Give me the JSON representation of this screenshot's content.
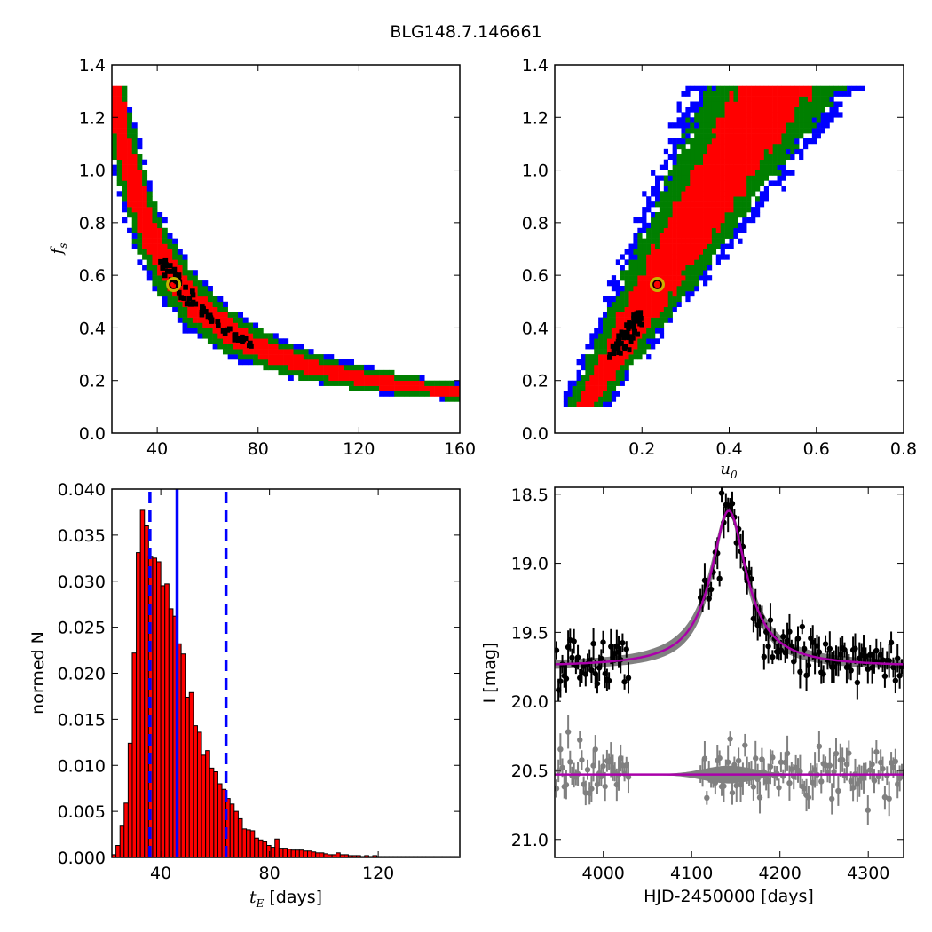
{
  "figure": {
    "title": "BLG148.7.146661"
  },
  "colors": {
    "red": "#ff0000",
    "green": "#007f00",
    "blue": "#0000ff",
    "black": "#000000",
    "gray": "#808080",
    "magenta": "#aa00aa",
    "gold": "#c8b400"
  },
  "chart_data": [
    {
      "id": "te-fs",
      "type": "heatmap",
      "xlabel": "",
      "ylabel": "f_s",
      "xlim": [
        22,
        160
      ],
      "ylim": [
        0,
        1.4
      ],
      "xticks": [
        40,
        80,
        120,
        160
      ],
      "yticks": [
        0.0,
        0.2,
        0.4,
        0.6,
        0.8,
        1.0,
        1.2,
        1.4
      ],
      "confidence_levels": [
        "black",
        "red",
        "green",
        "blue"
      ],
      "ridge_curve": "t_E ≈ 28 / f_s^0.9 (approx. centre of the posterior band)",
      "best_fit": {
        "x": 46.5,
        "y": 0.565
      }
    },
    {
      "id": "u0-fs",
      "type": "heatmap",
      "xlabel": "u_0",
      "ylabel": "",
      "xlim": [
        0,
        0.8
      ],
      "ylim": [
        0,
        1.4
      ],
      "xticks": [
        0.2,
        0.4,
        0.6,
        0.8
      ],
      "yticks": [
        0.0,
        0.2,
        0.4,
        0.6,
        0.8,
        1.0,
        1.2,
        1.4
      ],
      "confidence_levels": [
        "black",
        "red",
        "green",
        "blue"
      ],
      "best_fit": {
        "x": 0.235,
        "y": 0.565
      }
    },
    {
      "id": "te-hist",
      "type": "bar",
      "xlabel": "t_E [days]",
      "ylabel": "normed N",
      "xlim": [
        22,
        150
      ],
      "ylim": [
        0,
        0.04
      ],
      "xticks": [
        40,
        80,
        120
      ],
      "yticks": [
        0.0,
        0.005,
        0.01,
        0.015,
        0.02,
        0.025,
        0.03,
        0.035,
        0.04
      ],
      "bin_start": 22,
      "bin_width": 1.5,
      "values": [
        0.0003,
        0.0013,
        0.0034,
        0.0059,
        0.0124,
        0.0222,
        0.0331,
        0.0377,
        0.036,
        0.0327,
        0.0325,
        0.0321,
        0.0295,
        0.0297,
        0.027,
        0.0262,
        0.0232,
        0.0221,
        0.0174,
        0.0179,
        0.0143,
        0.0136,
        0.0111,
        0.0116,
        0.0097,
        0.0093,
        0.008,
        0.0074,
        0.0064,
        0.0058,
        0.005,
        0.0042,
        0.0031,
        0.003,
        0.0029,
        0.0021,
        0.0019,
        0.0017,
        0.0013,
        0.0011,
        0.002,
        0.001,
        0.001,
        0.0009,
        0.0008,
        0.0008,
        0.0008,
        0.0007,
        0.0007,
        0.0006,
        0.0005,
        0.0005,
        0.0004,
        0.0003,
        0.0003,
        0.0005,
        0.0003,
        0.0003,
        0.0002,
        0.0002,
        0.0002,
        0.0001,
        0.0002,
        0.0001,
        0.0002,
        0.0001,
        0.0001,
        0.0001,
        0.0001,
        0.0001,
        0.0001,
        0.0001,
        0.0001,
        0.0001,
        0.0001,
        0.0001,
        0.0001,
        0.0001,
        0.0001,
        0.0001,
        0.0001,
        0.0001,
        0.0001,
        0.0001,
        0.0001
      ],
      "median_line": 46.0,
      "interval_lines": [
        36.0,
        64.0
      ]
    },
    {
      "id": "lightcurve",
      "type": "scatter",
      "xlabel": "HJD-2450000 [days]",
      "ylabel": "I [mag]",
      "xlim": [
        3945,
        4340
      ],
      "ylim": [
        21.13,
        18.45
      ],
      "xticks": [
        4000,
        4100,
        4200,
        4300
      ],
      "yticks": [
        18.5,
        19.0,
        19.5,
        20.0,
        20.5,
        21.0
      ],
      "model": {
        "baseline": 19.75,
        "t0": 4142,
        "peak": 18.62,
        "tE": 46,
        "residual_baseline": 20.53
      }
    }
  ]
}
